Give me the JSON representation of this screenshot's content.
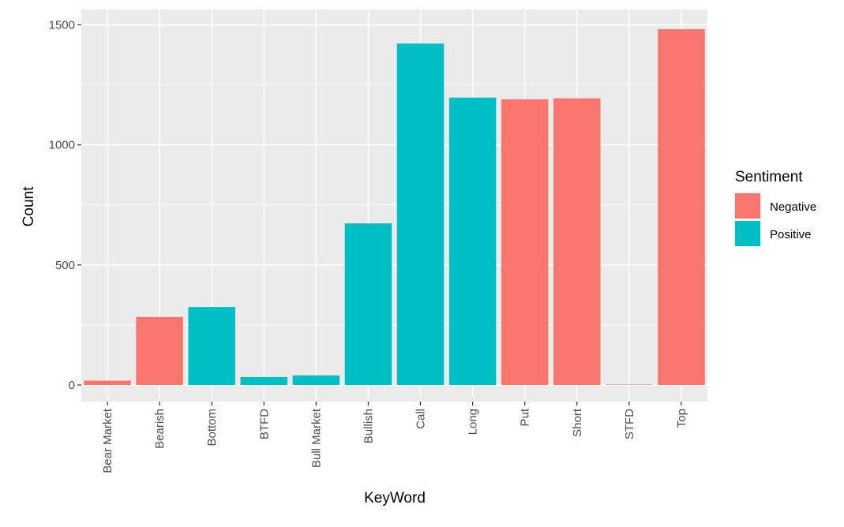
{
  "chart_data": {
    "type": "bar",
    "xlabel": "KeyWord",
    "ylabel": "Count",
    "categories": [
      "Bear Market",
      "Bearish",
      "Bottom",
      "BTFD",
      "Bull Market",
      "Bullish",
      "Call",
      "Long",
      "Put",
      "Short",
      "STFD",
      "Top"
    ],
    "values": [
      18,
      283,
      325,
      33,
      40,
      673,
      1422,
      1197,
      1190,
      1194,
      2,
      1482
    ],
    "sentiment": [
      "Negative",
      "Negative",
      "Positive",
      "Positive",
      "Positive",
      "Positive",
      "Positive",
      "Positive",
      "Negative",
      "Negative",
      "Negative",
      "Negative"
    ],
    "ylim": [
      -70,
      1555
    ],
    "yticks": [
      0,
      500,
      1000,
      1500
    ],
    "grid": true,
    "legend": {
      "title": "Sentiment",
      "position": "right",
      "entries": [
        {
          "name": "Negative",
          "color": "#F8766D"
        },
        {
          "name": "Positive",
          "color": "#00BFC4"
        }
      ]
    },
    "colors": {
      "panel_background": "#EBEBEB",
      "grid": "#FFFFFF",
      "Negative": "#F8766D",
      "Positive": "#00BFC4"
    }
  }
}
